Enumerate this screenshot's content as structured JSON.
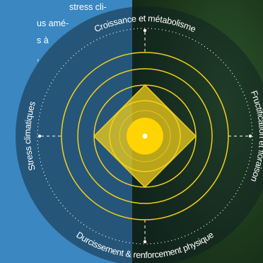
{
  "intro_text": [
    "stress cli-",
    "us amé-",
    "s à",
    ","
  ],
  "labels": {
    "top": "Croissance et métabolisme",
    "right": "Fructification et floraison",
    "bottom": "Durcissement & renforcement physique",
    "left": "Stress climatiques"
  }
}
